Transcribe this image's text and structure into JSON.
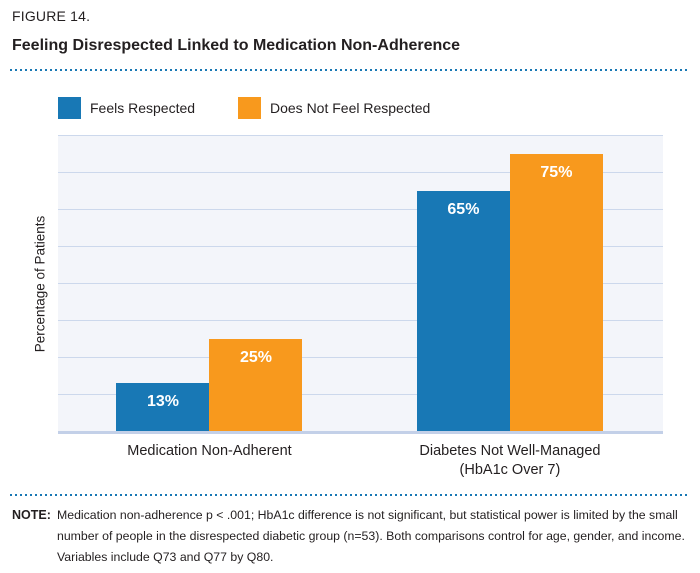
{
  "figure": {
    "label": "FIGURE 14.",
    "title": "Feeling Disrespected Linked to Medication Non-Adherence"
  },
  "chart_data": {
    "type": "bar",
    "title": "Feeling Disrespected Linked to Medication Non-Adherence",
    "categories": [
      "Medication Non-Adherent",
      "Diabetes Not Well-Managed\n(HbA1c Over 7)"
    ],
    "series": [
      {
        "name": "Feels Respected",
        "color": "#1878B5",
        "values": [
          13,
          65
        ]
      },
      {
        "name": "Does Not Feel Respected",
        "color": "#F8991D",
        "values": [
          25,
          75
        ]
      }
    ],
    "data_labels": [
      [
        "13%",
        "65%"
      ],
      [
        "25%",
        "75%"
      ]
    ],
    "value_suffix": "%",
    "xlabel": "",
    "ylabel": "Percentage of Patients",
    "ylim": [
      0,
      80
    ],
    "gridline_step": 10,
    "grid": true,
    "y_tick_labels_shown": false,
    "legend_position": "top-left"
  },
  "note": {
    "label": "NOTE:",
    "text": "Medication non-adherence p < .001; HbA1c difference is not significant, but statistical power is limited by the small number of people in the disrespected diabetic group (n=53). Both comparisons control for age, gender, and income. Variables include Q73 and Q77 by Q80."
  },
  "colors": {
    "series_blue": "#1878B5",
    "series_orange": "#F8991D",
    "dotted_rule": "#1878B4",
    "plot_background": "#F3F5FA",
    "gridline": "#CCD8EC",
    "axis_line": "#C3D0E8",
    "text": "#231F20",
    "bar_label_text": "#FFFFFF"
  }
}
